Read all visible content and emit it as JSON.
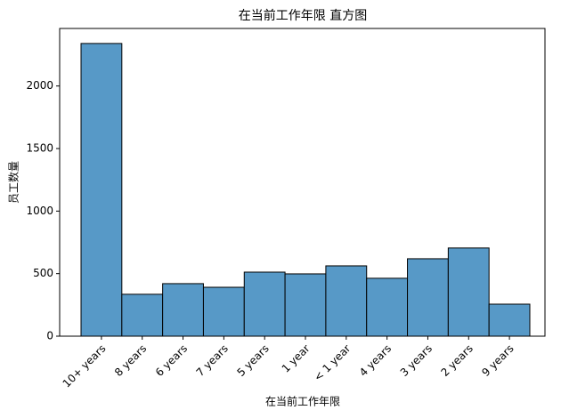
{
  "chart_data": {
    "type": "bar",
    "title": "在当前工作年限 直方图",
    "x_label": "在当前工作年限",
    "y_label": "员工数量",
    "categories": [
      "10+ years",
      "8 years",
      "6 years",
      "7 years",
      "5 years",
      "1 year",
      "< 1 year",
      "4 years",
      "3 years",
      "2 years",
      "9 years"
    ],
    "values": [
      2340,
      335,
      420,
      391,
      512,
      498,
      562,
      463,
      619,
      705,
      256
    ],
    "color": "#5799c7",
    "edge_color": "#000000",
    "ylim": [
      0,
      2460
    ],
    "yticks": [
      0,
      500,
      1000,
      1500,
      2000
    ],
    "grid": false
  }
}
